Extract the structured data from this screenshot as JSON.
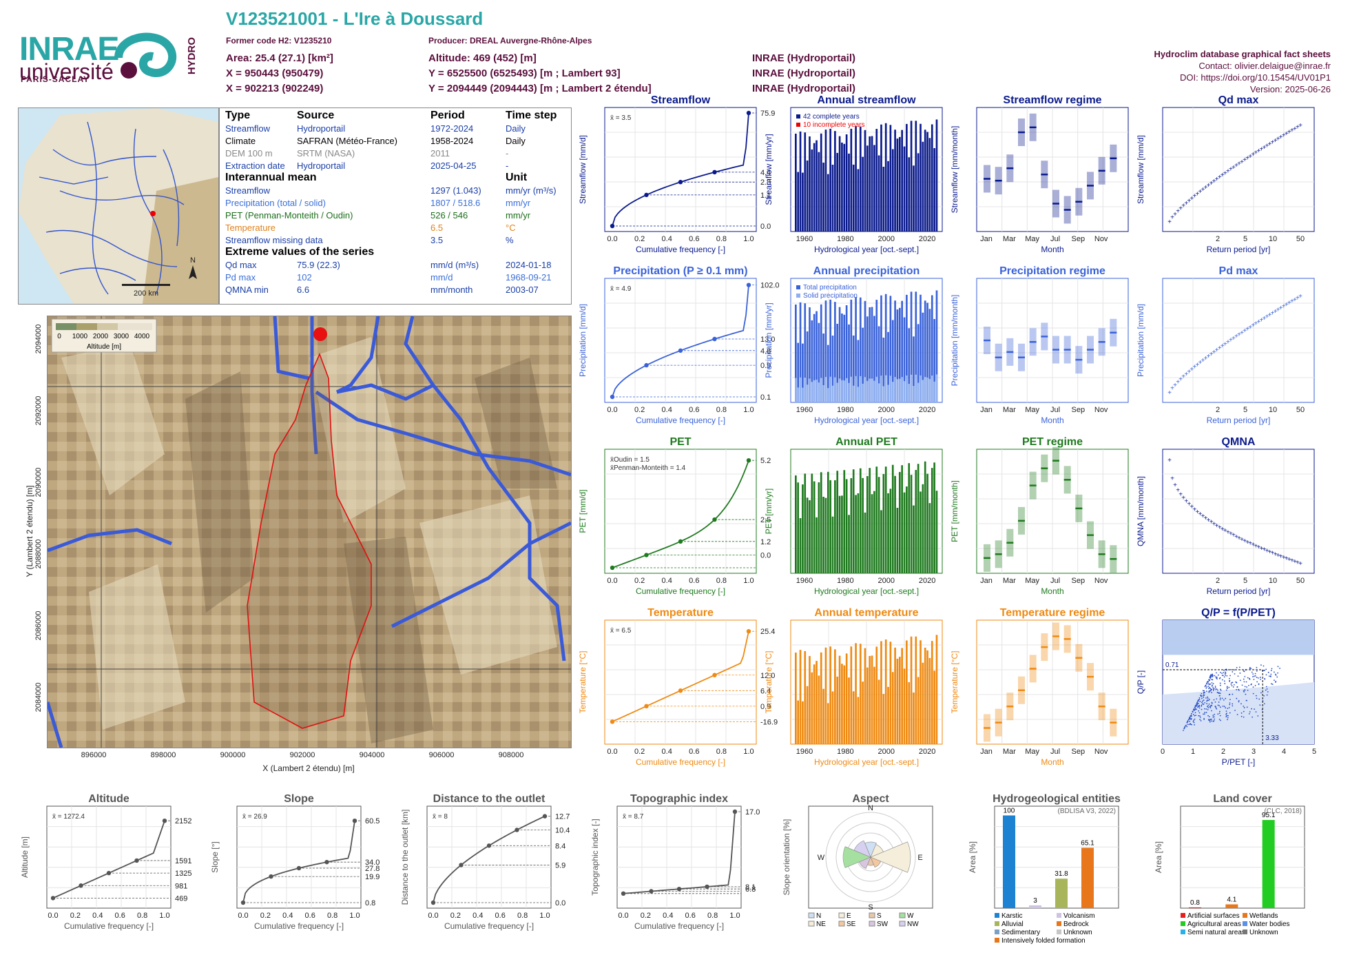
{
  "header": {
    "title": "V123521001 - L'Ire à Doussard",
    "former_code": "Former code H2: V1235210",
    "producer": "Producer: DREAL Auvergne-Rhône-Alpes",
    "area": "Area: 25.4 (27.1) [km²]",
    "x": "X = 950443 (950479)",
    "x2": "X = 902213 (902249)",
    "altitude": "Altitude: 469 (452) [m]",
    "y": "Y = 6525500 (6525493) [m ; Lambert 93]",
    "y2": "Y = 2094449 (2094443) [m ; Lambert 2 étendu]",
    "src1": "INRAE (Hydroportail)",
    "src2": "INRAE (Hydroportail)",
    "src3": "INRAE (Hydroportail)",
    "db": "Hydroclim database graphical fact sheets",
    "contact": "Contact: olivier.delaigue@inrae.fr",
    "doi": "DOI: https://doi.org/10.15454/UV01P1",
    "version": "Version: 2025-06-26"
  },
  "logos": {
    "inrae": "INRAE",
    "universite": "université",
    "paris_saclay": "PARIS-SACLAY",
    "hydro": "HYDRO"
  },
  "minimap": {
    "scale": "200 km",
    "north": "N"
  },
  "info": {
    "col_type": "Type",
    "col_source": "Source",
    "col_period": "Period",
    "col_step": "Time step",
    "rows": [
      {
        "type": "Streamflow",
        "source": "Hydroportail",
        "period": "1972-2024",
        "step": "Daily",
        "cls": "c-blue"
      },
      {
        "type": "Climate",
        "source": "SAFRAN (Météo-France)",
        "period": "1958-2024",
        "step": "Daily",
        "cls": "c-black"
      },
      {
        "type": "DEM 100 m",
        "source": "SRTM (NASA)",
        "period": "2011",
        "step": "-",
        "cls": "c-grey"
      },
      {
        "type": "Extraction date",
        "source": "Hydroportail",
        "period": "2025-04-25",
        "step": "-",
        "cls": "c-blue"
      }
    ],
    "interannual": "Interannual mean",
    "unit": "Unit",
    "means": [
      {
        "label": "Streamflow",
        "value": "1297 (1.043)",
        "unit": "mm/yr (m³/s)",
        "cls": "c-blue"
      },
      {
        "label": "Precipitation (total / solid)",
        "value": "1807 / 518.6",
        "unit": "mm/yr",
        "cls": "c-pblue"
      },
      {
        "label": "PET (Penman-Monteith / Oudin)",
        "value": "526 / 546",
        "unit": "mm/yr",
        "cls": "c-green"
      },
      {
        "label": "Temperature",
        "value": "6.5",
        "unit": "°C",
        "cls": "c-orange"
      },
      {
        "label": "Streamflow missing data",
        "value": "3.5",
        "unit": "%",
        "cls": "c-blue"
      }
    ],
    "extreme": "Extreme values of the series",
    "extremes": [
      {
        "label": "Qd max",
        "value": "75.9 (22.3)",
        "unit": "mm/d (m³/s)",
        "date": "2024-01-18",
        "cls": "c-blue"
      },
      {
        "label": "Pd max",
        "value": "102",
        "unit": "mm/d",
        "date": "1968-09-21",
        "cls": "c-pblue"
      },
      {
        "label": "QMNA min",
        "value": "6.6",
        "unit": "mm/month",
        "date": "2003-07",
        "cls": "c-blue"
      }
    ]
  },
  "bigmap": {
    "legend_title": "Altitude [m]",
    "legend_ticks": [
      "0",
      "1000",
      "2000",
      "3000",
      "4000"
    ],
    "xlabel": "X (Lambert 2 étendu) [m]",
    "ylabel": "Y (Lambert 2 étendu) [m]",
    "xticks": [
      "896000",
      "898000",
      "900000",
      "902000",
      "904000",
      "906000",
      "908000"
    ],
    "yticks": [
      "2094000",
      "2092000",
      "2090000",
      "2088000",
      "2086000",
      "2084000"
    ]
  },
  "colors": {
    "flow": "#0a1a8c",
    "precip": "#3a62d8",
    "pet": "#1f7a1f",
    "temp": "#ef8a12",
    "grey": "#555555",
    "teal": "#2aa6a6"
  },
  "chart_data": [
    {
      "id": "sf-cdf",
      "type": "line",
      "title": "Streamflow",
      "xlabel": "Cumulative frequency [-]",
      "ylabel": "Streamflow [mm/d]",
      "mean": "x̄ = 3.5",
      "right_ticks": [
        "75.9",
        "4.4",
        "2.3",
        "1.1",
        "0.0"
      ]
    },
    {
      "id": "sf-annual",
      "type": "bar",
      "title": "Annual streamflow",
      "xlabel": "Hydrological year [oct.-sept.]",
      "ylabel": "Streamflow [mm/yr]",
      "legend": [
        "42 complete years",
        "10 incomplete years"
      ]
    },
    {
      "id": "sf-regime",
      "type": "bar",
      "title": "Streamflow regime",
      "xlabel": "Month",
      "ylabel": "Streamflow [mm/month]",
      "months": [
        "Jan",
        "Mar",
        "May",
        "Jul",
        "Sep",
        "Nov"
      ],
      "values": [
        85,
        82,
        102,
        160,
        168,
        92,
        45,
        35,
        48,
        74,
        98,
        118
      ]
    },
    {
      "id": "qd-max",
      "type": "scatter",
      "title": "Qd max",
      "xlabel": "Return period [yr]",
      "ylabel": "Streamflow [mm/d]"
    },
    {
      "id": "p-cdf",
      "type": "line",
      "title": "Precipitation (P ≥ 0.1 mm)",
      "xlabel": "Cumulative frequency [-]",
      "ylabel": "Precipitation [mm/d]",
      "mean": "x̄ = 4.9",
      "right_ticks": [
        "102.0",
        "13.0",
        "4.6",
        "0.9",
        "0.1"
      ]
    },
    {
      "id": "p-annual",
      "type": "bar",
      "title": "Annual precipitation",
      "xlabel": "Hydrological year [oct.-sept.]",
      "ylabel": "Precipitation [mm/yr]",
      "legend": [
        "Total precipitation",
        "Solid precipitation"
      ]
    },
    {
      "id": "p-regime",
      "type": "bar",
      "title": "Precipitation regime",
      "xlabel": "Month",
      "ylabel": "Precipitation [mm/month]",
      "months": [
        "Jan",
        "Mar",
        "May",
        "Jul",
        "Sep",
        "Nov"
      ],
      "values": [
        140,
        118,
        125,
        118,
        138,
        145,
        128,
        128,
        115,
        128,
        138,
        150
      ]
    },
    {
      "id": "pd-max",
      "type": "scatter",
      "title": "Pd max",
      "xlabel": "Return period [yr]",
      "ylabel": "Precipitation [mm/d]"
    },
    {
      "id": "pet-cdf",
      "type": "line",
      "title": "PET",
      "xlabel": "Cumulative frequency [-]",
      "ylabel": "PET [mm/d]",
      "mean": "x̄Oudin = 1.5",
      "mean2": "x̄Penman-Monteith = 1.4",
      "right_ticks": [
        "5.2",
        "2.5",
        "1.2",
        "0.0"
      ]
    },
    {
      "id": "pet-annual",
      "type": "bar",
      "title": "Annual PET",
      "xlabel": "Hydrological year [oct.-sept.]",
      "ylabel": "PET [mm/yr]"
    },
    {
      "id": "pet-regime",
      "type": "bar",
      "title": "PET regime",
      "xlabel": "Month",
      "ylabel": "PET [mm/month]",
      "months": [
        "Jan",
        "Mar",
        "May",
        "Jul",
        "Sep",
        "Nov"
      ],
      "values": [
        6,
        10,
        22,
        45,
        82,
        100,
        108,
        88,
        58,
        30,
        10,
        5
      ]
    },
    {
      "id": "qmna",
      "type": "scatter",
      "title": "QMNA",
      "xlabel": "Return period [yr]",
      "ylabel": "QMNA [mm/month]"
    },
    {
      "id": "t-cdf",
      "type": "line",
      "title": "Temperature",
      "xlabel": "Cumulative frequency [-]",
      "ylabel": "Temperature [°C]",
      "mean": "x̄ = 6.5",
      "right_ticks": [
        "25.4",
        "12.0",
        "6.4",
        "0.9",
        "-16.9"
      ]
    },
    {
      "id": "t-annual",
      "type": "bar",
      "title": "Annual temperature",
      "xlabel": "Hydrological year [oct.-sept.]",
      "ylabel": "Temperature [°C]"
    },
    {
      "id": "t-regime",
      "type": "bar",
      "title": "Temperature regime",
      "xlabel": "Month",
      "ylabel": "Temperature [°C]",
      "months": [
        "Jan",
        "Mar",
        "May",
        "Jul",
        "Sep",
        "Nov"
      ],
      "values": [
        -2,
        -1,
        2,
        5,
        9,
        13,
        15,
        14.5,
        11,
        7.5,
        2,
        -1
      ]
    },
    {
      "id": "qp",
      "type": "scatter",
      "title": "Q/P = f(P/PET)",
      "xlabel": "P/PET [-]",
      "ylabel": "Q/P [-]",
      "ann1": "0.71",
      "ann2": "3.33"
    },
    {
      "id": "alt",
      "type": "line",
      "title": "Altitude",
      "xlabel": "Cumulative frequency [-]",
      "ylabel": "Altitude [m]",
      "mean": "x̄ = 1272.4",
      "right_ticks": [
        "2152",
        "1591",
        "1325",
        "981",
        "469"
      ]
    },
    {
      "id": "slope",
      "type": "line",
      "title": "Slope",
      "xlabel": "Cumulative frequency [-]",
      "ylabel": "Slope [°]",
      "mean": "x̄ = 26.9",
      "right_ticks": [
        "60.5",
        "34.0",
        "27.8",
        "19.9",
        "0.8"
      ]
    },
    {
      "id": "dist",
      "type": "line",
      "title": "Distance to the outlet",
      "xlabel": "Cumulative frequency [-]",
      "ylabel": "Distance to the outlet [km]",
      "mean": "x̄ = 8",
      "right_ticks": [
        "12.7",
        "10.4",
        "8.4",
        "5.9",
        "0.0"
      ]
    },
    {
      "id": "topo",
      "type": "line",
      "title": "Topographic index",
      "xlabel": "Cumulative frequency [-]",
      "ylabel": "Topographic index [-]",
      "mean": "x̄ = 8.7",
      "right_ticks": [
        "17.0",
        "8.1",
        "6.8"
      ]
    },
    {
      "id": "aspect",
      "type": "pie",
      "title": "Aspect",
      "ylabel": "Slope orientation [%]",
      "dirs": [
        "N",
        "E",
        "S",
        "W"
      ],
      "legend": [
        "N",
        "E",
        "S",
        "W",
        "NE",
        "SE",
        "SW",
        "NW"
      ]
    },
    {
      "id": "hydrogeo",
      "type": "bar",
      "title": "Hydrogeological entities",
      "ylabel": "Area [%]",
      "source": "(BDLISA V3, 2022)",
      "values": [
        100,
        3,
        31.8,
        65.1
      ],
      "labels": [
        "100",
        "3",
        "31.8",
        "65.1"
      ],
      "legend": [
        "Karstic",
        "Volcanism",
        "Alluvial",
        "Bedrock",
        "Sedimentary",
        "Unknown",
        "Intensively folded formation"
      ]
    },
    {
      "id": "landcover",
      "type": "bar",
      "title": "Land cover",
      "ylabel": "Area [%]",
      "source": "(CLC, 2018)",
      "values": [
        0.8,
        4.1,
        95.1
      ],
      "labels": [
        "0.8",
        "4.1",
        "95.1"
      ],
      "legend": [
        "Artificial surfaces",
        "Wetlands",
        "Agricultural areas",
        "Water bodies",
        "Semi natural areas",
        "Unknown"
      ]
    }
  ]
}
